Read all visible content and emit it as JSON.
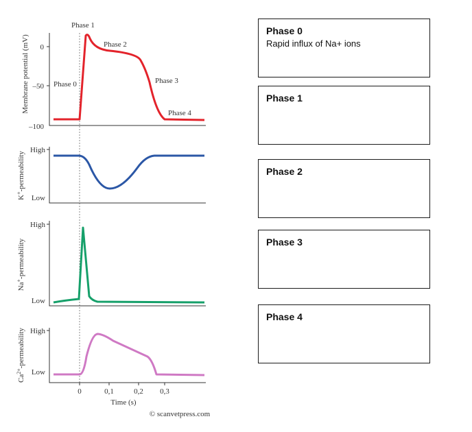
{
  "diagram": {
    "panels": [
      {
        "id": "membrane",
        "ylabel": "Membrane potential (mV)",
        "yticks": [
          "0",
          "–50",
          "–100"
        ],
        "color": "#e3232b",
        "annotations": [
          "Phase 1",
          "Phase 2",
          "Phase 0",
          "Phase 3",
          "Phase 4"
        ]
      },
      {
        "id": "potassium",
        "ylabel_main": "K",
        "ylabel_sup": "+",
        "ylabel_tail": "-permeability",
        "yticks": [
          "High",
          "Low"
        ],
        "color": "#2b57a6"
      },
      {
        "id": "sodium",
        "ylabel_main": "Na",
        "ylabel_sup": "+",
        "ylabel_tail": "-permeability",
        "yticks": [
          "High",
          "Low"
        ],
        "color": "#16a06a"
      },
      {
        "id": "calcium",
        "ylabel_main": "Ca",
        "ylabel_sup": "2+",
        "ylabel_tail": "-permeability",
        "yticks": [
          "High",
          "Low"
        ],
        "color": "#cf79c4"
      }
    ],
    "xaxis": {
      "ticks": [
        "0",
        "0,1",
        "0,2",
        "0,3"
      ],
      "label": "Time (s)"
    },
    "credit": "© scanvetpress.com"
  },
  "phase_boxes": [
    {
      "title": "Phase 0",
      "text": "Rapid influx of Na+ ions"
    },
    {
      "title": "Phase 1",
      "text": ""
    },
    {
      "title": "Phase 2",
      "text": ""
    },
    {
      "title": "Phase 3",
      "text": ""
    },
    {
      "title": "Phase 4",
      "text": ""
    }
  ]
}
